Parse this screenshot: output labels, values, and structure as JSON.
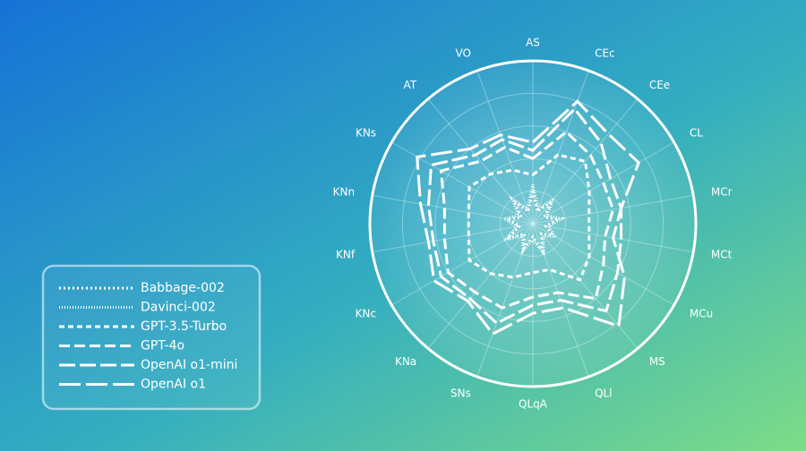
{
  "chart_data": {
    "type": "radar",
    "categories": [
      "AS",
      "CEc",
      "CEe",
      "CL",
      "MCr",
      "MCt",
      "MCu",
      "MS",
      "QLl",
      "QLqA",
      "SNs",
      "KNa",
      "KNc",
      "KNf",
      "KNn",
      "KNs",
      "AT",
      "VO"
    ],
    "ylim": [
      0,
      100
    ],
    "yticks": [
      20,
      40,
      60,
      80,
      100
    ],
    "grid": true,
    "legend": "bottom-left",
    "series": [
      {
        "name": "Babbage-002",
        "color": "#ffffff",
        "dash": "2,3",
        "values": [
          20,
          8,
          18,
          8,
          16,
          8,
          14,
          8,
          18,
          8,
          16,
          8,
          18,
          8,
          16,
          8,
          18,
          8
        ]
      },
      {
        "name": "Davinci-002",
        "color": "#ffffff",
        "dash": "1,2",
        "values": [
          24,
          10,
          20,
          10,
          18,
          10,
          16,
          10,
          20,
          10,
          18,
          10,
          20,
          10,
          18,
          10,
          20,
          10
        ]
      },
      {
        "name": "GPT-3.5-Turbo",
        "color": "#ffffff",
        "dash": "6,4",
        "values": [
          30,
          45,
          50,
          40,
          35,
          35,
          40,
          45,
          30,
          30,
          35,
          40,
          45,
          40,
          40,
          45,
          40,
          35
        ]
      },
      {
        "name": "GPT-4o",
        "color": "#ffffff",
        "dash": "12,5",
        "values": [
          40,
          60,
          55,
          50,
          50,
          45,
          50,
          60,
          45,
          45,
          55,
          55,
          60,
          55,
          55,
          65,
          50,
          50
        ]
      },
      {
        "name": "OpenAI o1-mini",
        "color": "#ffffff",
        "dash": "18,5",
        "values": [
          45,
          75,
          65,
          55,
          55,
          55,
          60,
          70,
          50,
          50,
          65,
          60,
          65,
          62,
          65,
          72,
          55,
          55
        ]
      },
      {
        "name": "OpenAI o1",
        "color": "#ffffff",
        "dash": "24,6",
        "values": [
          50,
          80,
          72,
          75,
          55,
          50,
          65,
          82,
          55,
          55,
          72,
          62,
          70,
          65,
          70,
          82,
          60,
          58
        ]
      }
    ]
  }
}
